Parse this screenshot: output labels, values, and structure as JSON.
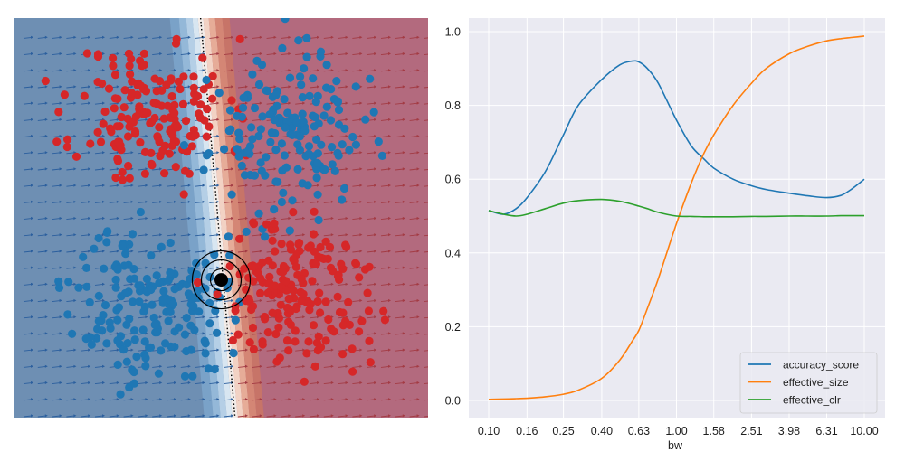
{
  "chart_data": [
    {
      "type": "scatter",
      "panel": "decision-boundary",
      "title": "",
      "xlabel": "",
      "ylabel": "",
      "grid": false,
      "xlim": [
        -3.0,
        3.0
      ],
      "ylim": [
        -2.8,
        3.0
      ],
      "boundary": {
        "x_at_top": -0.3,
        "x_at_bottom": 0.2
      },
      "class_colors": {
        "class_0": "#1f77b4",
        "class_1": "#d62728"
      },
      "background_colors": {
        "class_0": "#6e8fb3",
        "class_1": "#b36a7e"
      },
      "clusters": [
        {
          "class": "class_1",
          "center": [
            -1.0,
            1.6
          ],
          "spread": 0.55,
          "n": 170,
          "seed": 11
        },
        {
          "class": "class_0",
          "center": [
            0.95,
            1.3
          ],
          "spread": 0.55,
          "n": 170,
          "seed": 23
        },
        {
          "class": "class_0",
          "center": [
            -1.05,
            -1.15
          ],
          "spread": 0.55,
          "n": 180,
          "seed": 37
        },
        {
          "class": "class_1",
          "center": [
            1.05,
            -1.0
          ],
          "spread": 0.55,
          "n": 180,
          "seed": 51
        }
      ],
      "highlight_point": {
        "x": 0.0,
        "y": -0.8,
        "rings": 3
      }
    },
    {
      "type": "line",
      "panel": "bandwidth-curves",
      "title": "",
      "xlabel": "bw",
      "ylabel": "",
      "x_scale": "log",
      "xlim": [
        0.1,
        10.0
      ],
      "ylim": [
        0.0,
        1.0
      ],
      "grid": true,
      "legend_position": "bottom-right",
      "x_ticks": [
        0.1,
        0.16,
        0.25,
        0.4,
        0.63,
        1.0,
        1.58,
        2.51,
        3.98,
        6.31,
        10.0
      ],
      "x_tick_labels": [
        "0.10",
        "0.16",
        "0.25",
        "0.40",
        "0.63",
        "1.00",
        "1.58",
        "2.51",
        "3.98",
        "6.31",
        "10.00"
      ],
      "y_ticks": [
        0.0,
        0.2,
        0.4,
        0.6,
        0.8,
        1.0
      ],
      "y_tick_labels": [
        "0.0",
        "0.2",
        "0.4",
        "0.6",
        "0.8",
        "1.0"
      ],
      "x": [
        0.1,
        0.12,
        0.14,
        0.16,
        0.2,
        0.25,
        0.3,
        0.4,
        0.5,
        0.58,
        0.63,
        0.7,
        0.8,
        1.0,
        1.2,
        1.4,
        1.58,
        2.0,
        2.51,
        3.0,
        3.98,
        5.0,
        6.31,
        7.5,
        8.5,
        10.0
      ],
      "series": [
        {
          "name": "accuracy_score",
          "color": "#1f77b4",
          "values": [
            0.515,
            0.505,
            0.52,
            0.55,
            0.62,
            0.72,
            0.8,
            0.87,
            0.91,
            0.92,
            0.918,
            0.9,
            0.86,
            0.76,
            0.69,
            0.655,
            0.63,
            0.6,
            0.582,
            0.572,
            0.562,
            0.555,
            0.55,
            0.556,
            0.572,
            0.6
          ]
        },
        {
          "name": "effective_size",
          "color": "#ff7f0e",
          "values": [
            0.003,
            0.004,
            0.005,
            0.006,
            0.01,
            0.017,
            0.028,
            0.06,
            0.11,
            0.16,
            0.19,
            0.25,
            0.33,
            0.48,
            0.59,
            0.67,
            0.72,
            0.8,
            0.86,
            0.9,
            0.94,
            0.96,
            0.975,
            0.981,
            0.984,
            0.988
          ]
        },
        {
          "name": "effective_clr",
          "color": "#2ca02c",
          "values": [
            0.515,
            0.505,
            0.5,
            0.505,
            0.52,
            0.535,
            0.542,
            0.545,
            0.54,
            0.532,
            0.527,
            0.52,
            0.51,
            0.5,
            0.499,
            0.498,
            0.498,
            0.498,
            0.499,
            0.499,
            0.5,
            0.5,
            0.5,
            0.501,
            0.501,
            0.501
          ]
        }
      ]
    }
  ]
}
